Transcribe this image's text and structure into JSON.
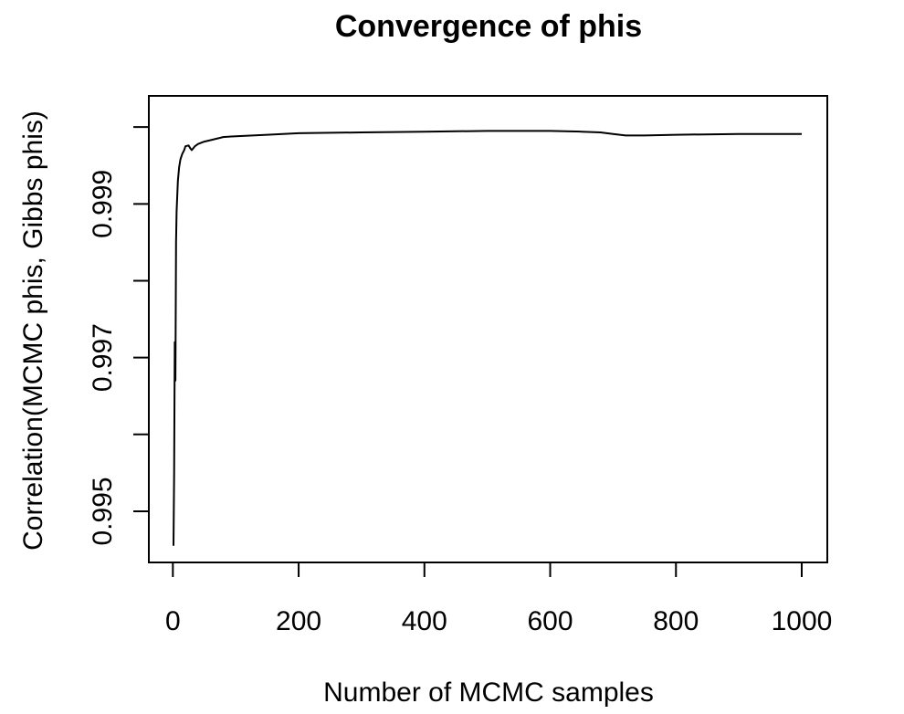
{
  "chart_data": {
    "type": "line",
    "title": "Convergence of phis",
    "xlabel": "Number of MCMC samples",
    "ylabel": "Correlation(MCMC phis, Gibbs phis)",
    "xlim": [
      1,
      1000
    ],
    "ylim": [
      0.99456,
      1.00018
    ],
    "grid": false,
    "legend": "none",
    "x_ticks": [
      0,
      200,
      400,
      600,
      800,
      1000
    ],
    "x_tick_labels": [
      "0",
      "200",
      "400",
      "600",
      "800",
      "1000"
    ],
    "y_ticks": [
      0.995,
      0.996,
      0.997,
      0.998,
      0.999,
      1.0
    ],
    "y_tick_labels": [
      "0.995",
      "",
      "0.997",
      "",
      "0.999",
      ""
    ],
    "series": [
      {
        "color": "#000000",
        "points": [
          [
            1,
            0.99455
          ],
          [
            2,
            0.9955
          ],
          [
            3,
            0.9972
          ],
          [
            4,
            0.9967
          ],
          [
            5,
            0.9985
          ],
          [
            6,
            0.9989
          ],
          [
            7,
            0.9991
          ],
          [
            8,
            0.9993
          ],
          [
            10,
            0.99948
          ],
          [
            12,
            0.99958
          ],
          [
            15,
            0.99965
          ],
          [
            18,
            0.9997
          ],
          [
            20,
            0.99975
          ],
          [
            25,
            0.99976
          ],
          [
            28,
            0.99972
          ],
          [
            30,
            0.9997
          ],
          [
            35,
            0.99975
          ],
          [
            40,
            0.99978
          ],
          [
            50,
            0.99981
          ],
          [
            60,
            0.99983
          ],
          [
            80,
            0.99987
          ],
          [
            100,
            0.99988
          ],
          [
            150,
            0.9999
          ],
          [
            200,
            0.99992
          ],
          [
            300,
            0.99993
          ],
          [
            400,
            0.99994
          ],
          [
            500,
            0.99995
          ],
          [
            600,
            0.99995
          ],
          [
            650,
            0.99994
          ],
          [
            680,
            0.99993
          ],
          [
            700,
            0.99991
          ],
          [
            720,
            0.99989
          ],
          [
            750,
            0.99989
          ],
          [
            800,
            0.9999
          ],
          [
            900,
            0.99991
          ],
          [
            1000,
            0.99991
          ]
        ]
      }
    ]
  }
}
